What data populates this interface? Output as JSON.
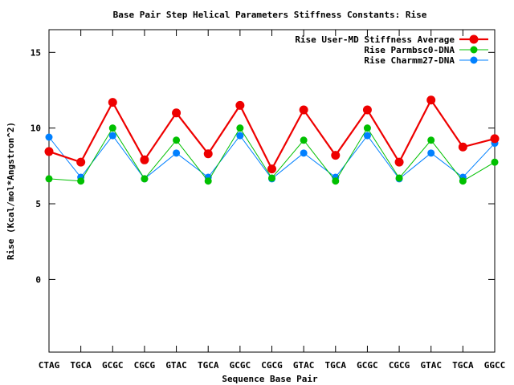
{
  "chart_data": {
    "type": "line",
    "title": "Base Pair Step Helical Parameters Stiffness Constants: Rise",
    "xlabel": "Sequence Base Pair",
    "ylabel": "Rise (Kcal/mol*Angstron^2)",
    "categories": [
      "CTAG",
      "TGCA",
      "GCGC",
      "CGCG",
      "GTAC",
      "TGCA",
      "GCGC",
      "CGCG",
      "GTAC",
      "TGCA",
      "GCGC",
      "CGCG",
      "GTAC",
      "TGCA",
      "GGCC"
    ],
    "ylim": [
      -4.8,
      16.5
    ],
    "yticks": [
      "15",
      "10",
      "5",
      "0"
    ],
    "ytick_values": [
      15,
      10,
      5,
      0
    ],
    "grid": false,
    "legend_position": "top-right",
    "series": [
      {
        "name": "Rise User-MD Stiffness Average",
        "color": "#ee0000",
        "values": [
          8.45,
          7.75,
          11.7,
          7.9,
          11.0,
          8.3,
          11.5,
          7.3,
          11.2,
          8.2,
          11.2,
          7.75,
          11.85,
          8.75,
          9.3
        ]
      },
      {
        "name": "Rise Parmbsc0-DNA",
        "color": "#00c000",
        "values": [
          6.65,
          6.5,
          10.0,
          6.65,
          9.2,
          6.5,
          10.0,
          6.7,
          9.2,
          6.5,
          10.0,
          6.7,
          9.2,
          6.5,
          7.75
        ]
      },
      {
        "name": "Rise Charmm27-DNA",
        "color": "#0080ff",
        "values": [
          9.4,
          6.75,
          9.5,
          6.65,
          8.35,
          6.75,
          9.5,
          6.65,
          8.35,
          6.75,
          9.5,
          6.65,
          8.35,
          6.75,
          9.0
        ]
      }
    ]
  }
}
